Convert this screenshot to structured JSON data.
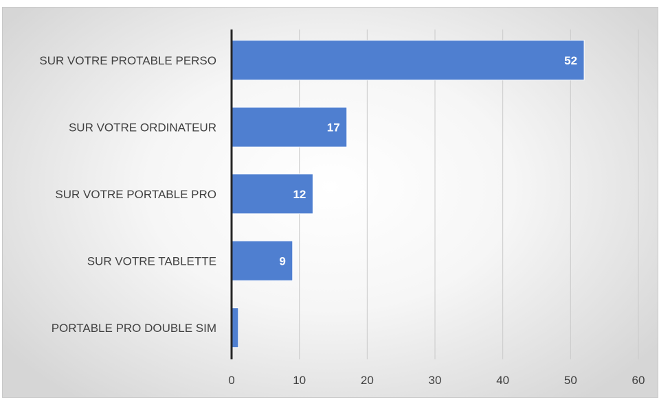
{
  "chart_data": {
    "type": "bar",
    "orientation": "horizontal",
    "categories": [
      "SUR VOTRE PROTABLE PERSO",
      "SUR VOTRE ORDINATEUR",
      "SUR VOTRE PORTABLE PRO",
      "SUR VOTRE TABLETTE",
      "PORTABLE PRO DOUBLE SIM"
    ],
    "values": [
      52,
      17,
      12,
      9,
      1
    ],
    "data_labels": [
      "52",
      "17",
      "12",
      "9",
      ""
    ],
    "xlim": [
      0,
      60
    ],
    "xticks": [
      0,
      10,
      20,
      30,
      40,
      50,
      60
    ],
    "title": "",
    "xlabel": "",
    "ylabel": "",
    "grid": "vertical",
    "legend": "none",
    "colors": {
      "bar": "#4f7fd0",
      "bar_border": "#ffffff",
      "gridline": "#c9c9c9",
      "axis": "#262626",
      "text": "#404040",
      "data_label": "#ffffff"
    }
  }
}
